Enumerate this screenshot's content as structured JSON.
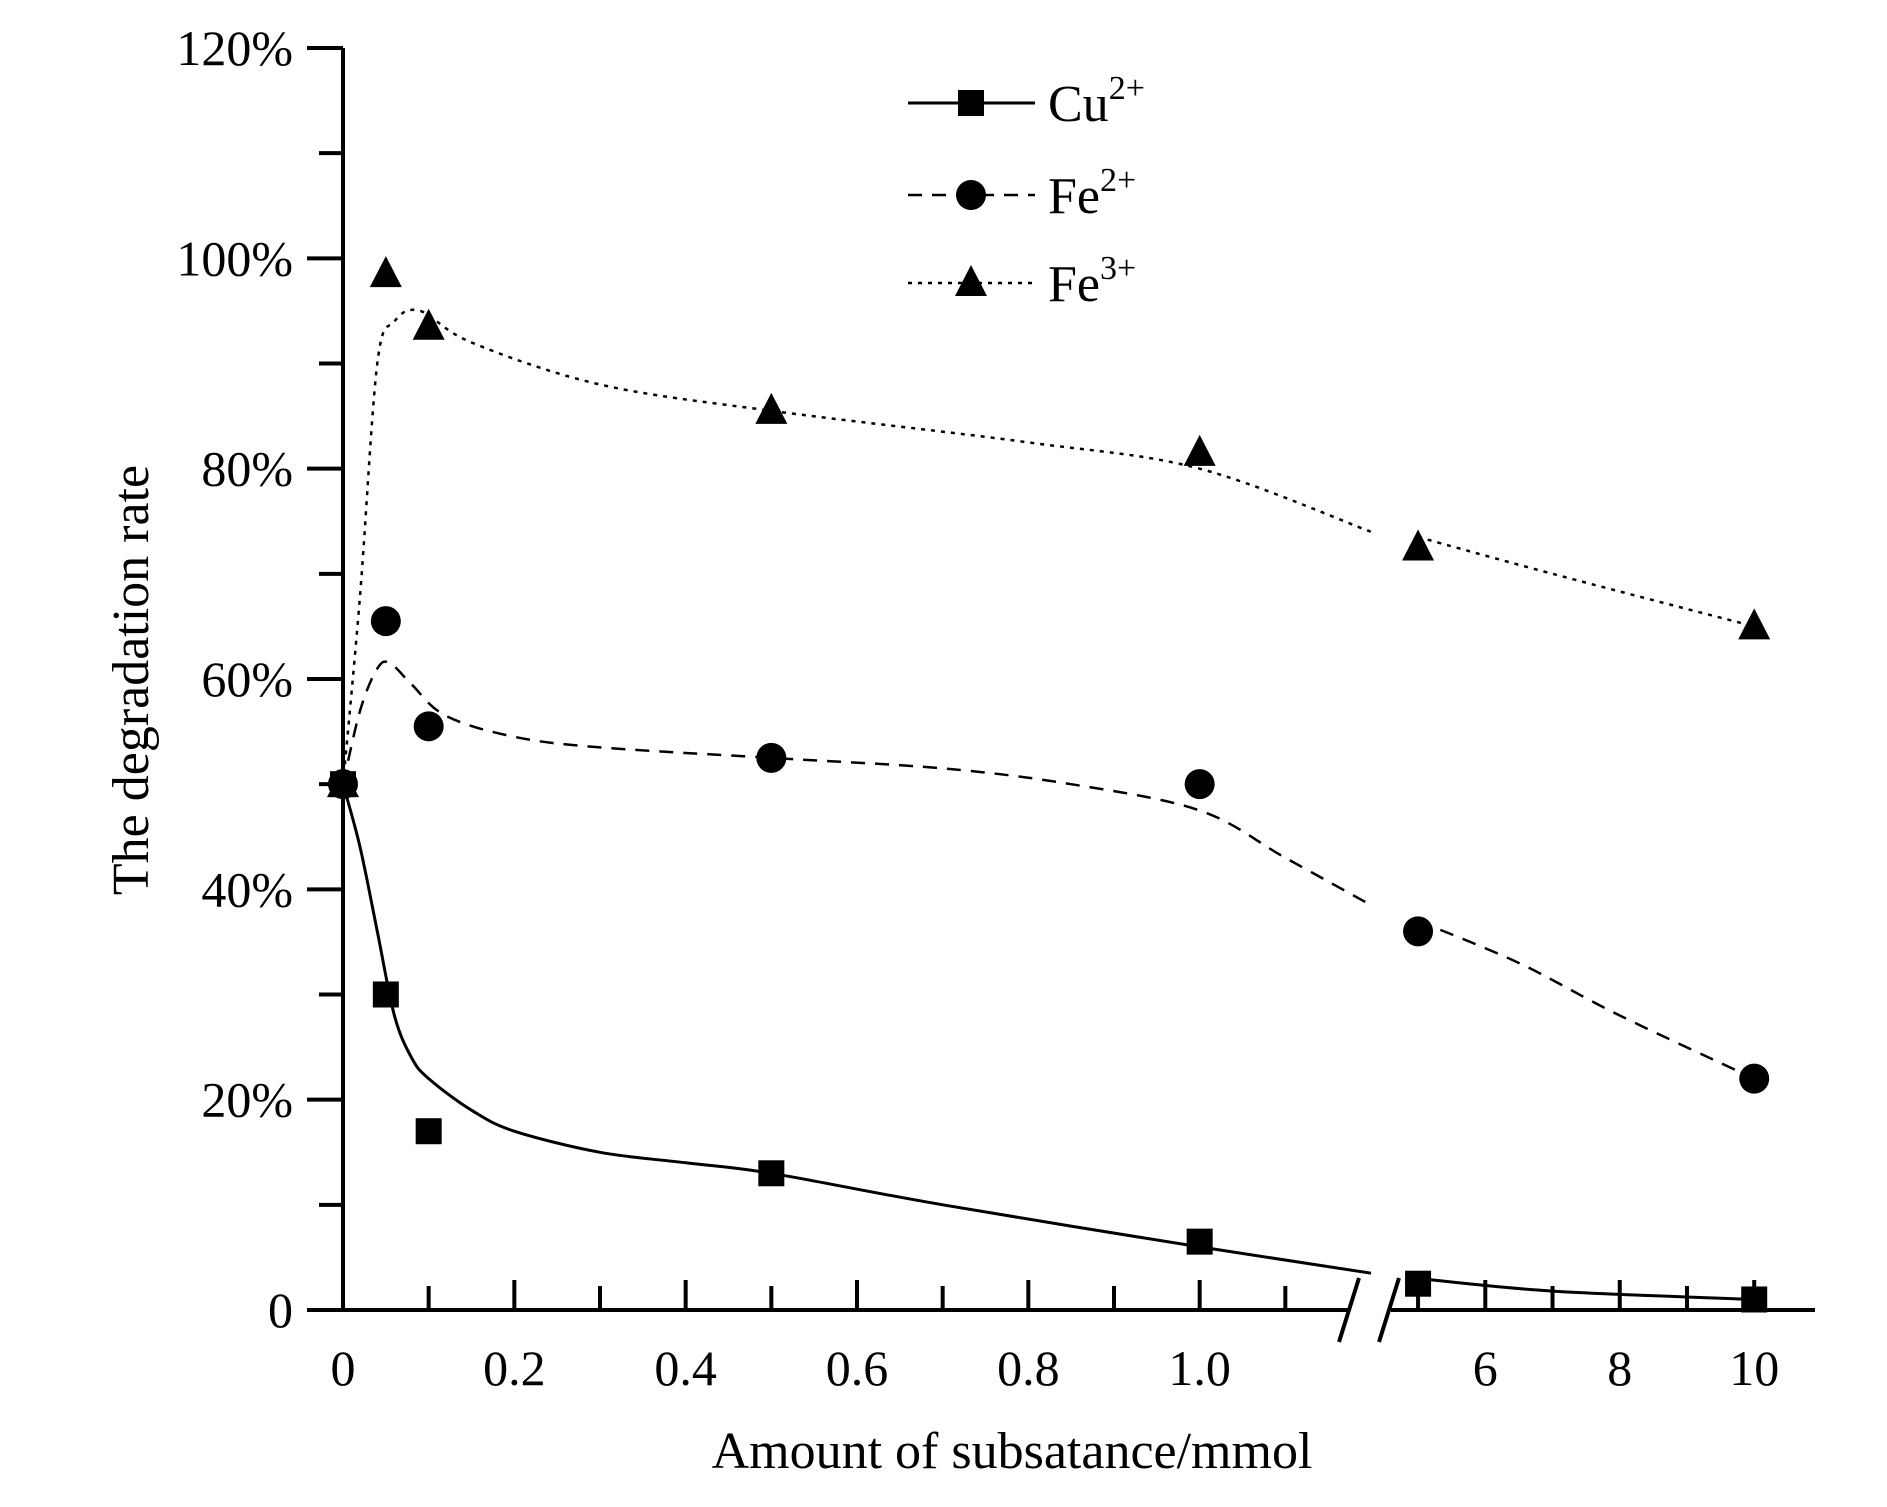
{
  "chart_data": {
    "type": "line",
    "title": "",
    "xlabel": "Amount of subsatance/mmol",
    "ylabel": "The degradation rate",
    "grid": false,
    "legend_position": "top-center",
    "x_axis_broken": true,
    "x_segments": [
      {
        "range": [
          0,
          1.2
        ],
        "tick_labels": [
          "0",
          "0.2",
          "0.4",
          "0.6",
          "0.8",
          "1.0"
        ],
        "tick_values": [
          0,
          0.2,
          0.4,
          0.6,
          0.8,
          1.0
        ]
      },
      {
        "range": [
          4.3,
          10.8
        ],
        "tick_labels": [
          "6",
          "8",
          "10"
        ],
        "tick_values": [
          6,
          8,
          10
        ]
      }
    ],
    "ylim": [
      0,
      1.2
    ],
    "y_ticks": [
      0,
      0.2,
      0.4,
      0.6,
      0.8,
      1.0,
      1.2
    ],
    "y_tick_labels": [
      "0",
      "20%",
      "40%",
      "60%",
      "80%",
      "100%",
      "120%"
    ],
    "x": [
      0,
      0.05,
      0.1,
      0.5,
      1.0,
      5,
      10
    ],
    "series": [
      {
        "name_base": "Cu",
        "name_sup": "2+",
        "marker": "square",
        "line": "solid",
        "color": "#000000",
        "values": [
          0.5,
          0.3,
          0.17,
          0.13,
          0.065,
          0.025,
          0.01
        ],
        "fit": [
          [
            0,
            0.5
          ],
          [
            0.02,
            0.44
          ],
          [
            0.04,
            0.36
          ],
          [
            0.06,
            0.28
          ],
          [
            0.08,
            0.24
          ],
          [
            0.1,
            0.22
          ],
          [
            0.15,
            0.19
          ],
          [
            0.2,
            0.17
          ],
          [
            0.3,
            0.15
          ],
          [
            0.4,
            0.14
          ],
          [
            0.5,
            0.13
          ],
          [
            0.7,
            0.1
          ],
          [
            1.0,
            0.06
          ],
          [
            1.2,
            0.035
          ],
          [
            5,
            0.03
          ],
          [
            7,
            0.018
          ],
          [
            10,
            0.01
          ]
        ]
      },
      {
        "name_base": "Fe",
        "name_sup": "2+",
        "marker": "circle",
        "line": "dashed",
        "color": "#000000",
        "values": [
          0.5,
          0.655,
          0.555,
          0.525,
          0.5,
          0.36,
          0.22
        ],
        "fit": [
          [
            0,
            0.5
          ],
          [
            0.02,
            0.57
          ],
          [
            0.04,
            0.61
          ],
          [
            0.055,
            0.615
          ],
          [
            0.08,
            0.595
          ],
          [
            0.12,
            0.565
          ],
          [
            0.2,
            0.545
          ],
          [
            0.3,
            0.535
          ],
          [
            0.5,
            0.525
          ],
          [
            0.7,
            0.515
          ],
          [
            0.85,
            0.5
          ],
          [
            1.0,
            0.475
          ],
          [
            1.1,
            0.43
          ],
          [
            1.2,
            0.385
          ],
          [
            5,
            0.37
          ],
          [
            6.5,
            0.33
          ],
          [
            8,
            0.28
          ],
          [
            10,
            0.22
          ]
        ]
      },
      {
        "name_base": "Fe",
        "name_sup": "3+",
        "marker": "triangle",
        "line": "dotted",
        "color": "#000000",
        "values": [
          0.5,
          0.985,
          0.935,
          0.855,
          0.815,
          0.725,
          0.65
        ],
        "fit": [
          [
            0,
            0.5
          ],
          [
            0.02,
            0.68
          ],
          [
            0.04,
            0.9
          ],
          [
            0.06,
            0.94
          ],
          [
            0.09,
            0.95
          ],
          [
            0.15,
            0.92
          ],
          [
            0.3,
            0.88
          ],
          [
            0.5,
            0.855
          ],
          [
            0.8,
            0.825
          ],
          [
            1.0,
            0.8
          ],
          [
            1.2,
            0.74
          ],
          [
            5,
            0.735
          ],
          [
            7,
            0.7
          ],
          [
            10,
            0.65
          ]
        ]
      }
    ]
  }
}
